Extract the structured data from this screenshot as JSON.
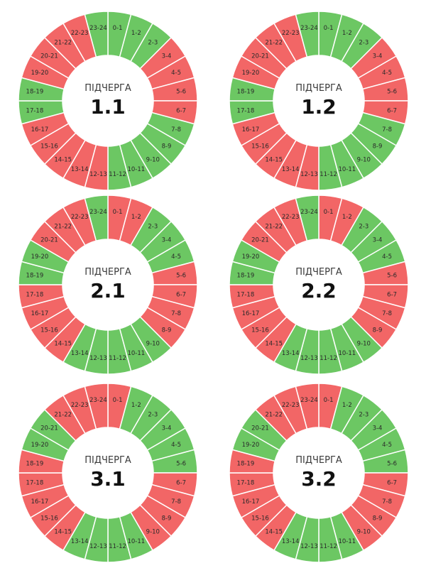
{
  "colors": {
    "on": "#6cc763",
    "off": "#f26666",
    "separator": "#ffffff"
  },
  "chart_data": [
    {
      "type": "pie",
      "title": "ПІДЧЕРГА",
      "number": "1.1",
      "categories": [
        "0-1",
        "1-2",
        "2-3",
        "3-4",
        "4-5",
        "5-6",
        "6-7",
        "7-8",
        "8-9",
        "9-10",
        "10-11",
        "11-12",
        "12-13",
        "13-14",
        "14-15",
        "15-16",
        "16-17",
        "17-18",
        "18-19",
        "19-20",
        "20-21",
        "21-22",
        "22-23",
        "23-24"
      ],
      "status": [
        "on",
        "on",
        "on",
        "off",
        "off",
        "off",
        "off",
        "on",
        "on",
        "on",
        "on",
        "on",
        "off",
        "off",
        "off",
        "off",
        "off",
        "on",
        "on",
        "off",
        "off",
        "off",
        "off",
        "on"
      ]
    },
    {
      "type": "pie",
      "title": "ПІДЧЕРГА",
      "number": "1.2",
      "categories": [
        "0-1",
        "1-2",
        "2-3",
        "3-4",
        "4-5",
        "5-6",
        "6-7",
        "7-8",
        "8-9",
        "9-10",
        "10-11",
        "11-12",
        "12-13",
        "13-14",
        "14-15",
        "15-16",
        "16-17",
        "17-18",
        "18-19",
        "19-20",
        "20-21",
        "21-22",
        "22-23",
        "23-24"
      ],
      "status": [
        "on",
        "on",
        "on",
        "off",
        "off",
        "off",
        "off",
        "on",
        "on",
        "on",
        "on",
        "on",
        "off",
        "off",
        "off",
        "off",
        "off",
        "on",
        "on",
        "off",
        "off",
        "off",
        "off",
        "on"
      ]
    },
    {
      "type": "pie",
      "title": "ПІДЧЕРГА",
      "number": "2.1",
      "categories": [
        "0-1",
        "1-2",
        "2-3",
        "3-4",
        "4-5",
        "5-6",
        "6-7",
        "7-8",
        "8-9",
        "9-10",
        "10-11",
        "11-12",
        "12-13",
        "13-14",
        "14-15",
        "15-16",
        "16-17",
        "17-18",
        "18-19",
        "19-20",
        "20-21",
        "21-22",
        "22-23",
        "23-24"
      ],
      "status": [
        "off",
        "off",
        "on",
        "on",
        "on",
        "off",
        "off",
        "off",
        "off",
        "on",
        "on",
        "on",
        "on",
        "on",
        "off",
        "off",
        "off",
        "off",
        "on",
        "on",
        "off",
        "off",
        "off",
        "on"
      ]
    },
    {
      "type": "pie",
      "title": "ПІДЧЕРГА",
      "number": "2.2",
      "categories": [
        "0-1",
        "1-2",
        "2-3",
        "3-4",
        "4-5",
        "5-6",
        "6-7",
        "7-8",
        "8-9",
        "9-10",
        "10-11",
        "11-12",
        "12-13",
        "13-14",
        "14-15",
        "15-16",
        "16-17",
        "17-18",
        "18-19",
        "19-20",
        "20-21",
        "21-22",
        "22-23",
        "23-24"
      ],
      "status": [
        "off",
        "off",
        "on",
        "on",
        "on",
        "off",
        "off",
        "off",
        "off",
        "on",
        "on",
        "on",
        "on",
        "on",
        "off",
        "off",
        "off",
        "off",
        "on",
        "on",
        "off",
        "off",
        "off",
        "on"
      ]
    },
    {
      "type": "pie",
      "title": "ПІДЧЕРГА",
      "number": "3.1",
      "categories": [
        "0-1",
        "1-2",
        "2-3",
        "3-4",
        "4-5",
        "5-6",
        "6-7",
        "7-8",
        "8-9",
        "9-10",
        "10-11",
        "11-12",
        "12-13",
        "13-14",
        "14-15",
        "15-16",
        "16-17",
        "17-18",
        "18-19",
        "19-20",
        "20-21",
        "21-22",
        "22-23",
        "23-24"
      ],
      "status": [
        "off",
        "on",
        "on",
        "on",
        "on",
        "on",
        "off",
        "off",
        "off",
        "off",
        "on",
        "on",
        "on",
        "on",
        "off",
        "off",
        "off",
        "off",
        "off",
        "on",
        "on",
        "off",
        "off",
        "off"
      ]
    },
    {
      "type": "pie",
      "title": "ПІДЧЕРГА",
      "number": "3.2",
      "categories": [
        "0-1",
        "1-2",
        "2-3",
        "3-4",
        "4-5",
        "5-6",
        "6-7",
        "7-8",
        "8-9",
        "9-10",
        "10-11",
        "11-12",
        "12-13",
        "13-14",
        "14-15",
        "15-16",
        "16-17",
        "17-18",
        "18-19",
        "19-20",
        "20-21",
        "21-22",
        "22-23",
        "23-24"
      ],
      "status": [
        "off",
        "on",
        "on",
        "on",
        "on",
        "on",
        "off",
        "off",
        "off",
        "off",
        "on",
        "on",
        "on",
        "on",
        "off",
        "off",
        "off",
        "off",
        "off",
        "on",
        "on",
        "off",
        "off",
        "off"
      ]
    }
  ]
}
